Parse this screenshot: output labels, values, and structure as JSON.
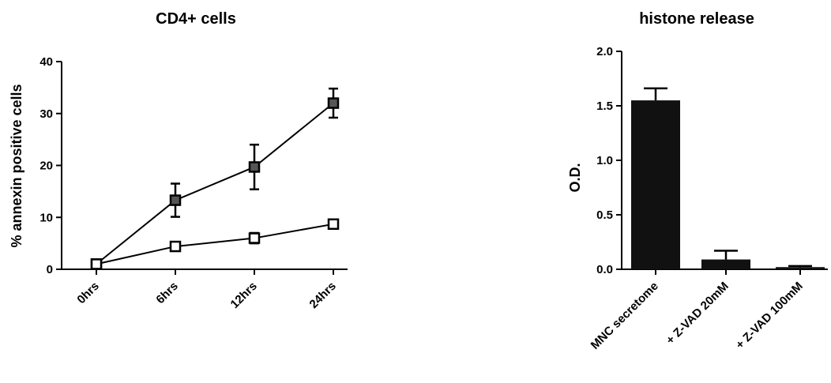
{
  "chart_data": [
    {
      "type": "line",
      "title": "CD4+ cells",
      "xlabel": "",
      "ylabel": "% annexin positive cells",
      "categories": [
        "0hrs",
        "6hrs",
        "12hrs",
        "24hrs"
      ],
      "ylim": [
        0,
        40
      ],
      "yticks": [
        "0",
        "10",
        "20",
        "30",
        "40"
      ],
      "grid": false,
      "series": [
        {
          "values": [
            1,
            13.3,
            19.7,
            32.0
          ],
          "errors": [
            0.3,
            3.2,
            4.3,
            2.8
          ],
          "marker": "filled-square",
          "color": "#555555"
        },
        {
          "values": [
            1,
            4.4,
            6.0,
            8.7
          ],
          "errors": [
            0.3,
            0.7,
            1.0,
            0.5
          ],
          "marker": "open-square",
          "color": "#ffffff"
        }
      ]
    },
    {
      "type": "bar",
      "title": "histone release",
      "xlabel": "",
      "ylabel": "O.D.",
      "categories": [
        "MNC secretome",
        "+ Z-VAD 20mM",
        "+ Z-VAD 100mM"
      ],
      "values": [
        1.55,
        0.09,
        0.02
      ],
      "errors": [
        0.11,
        0.08,
        0.01
      ],
      "ylim": [
        0,
        2.0
      ],
      "yticks": [
        "0.0",
        "0.5",
        "1.0",
        "1.5",
        "2.0"
      ],
      "grid": false,
      "bar_color": "#111111"
    }
  ]
}
